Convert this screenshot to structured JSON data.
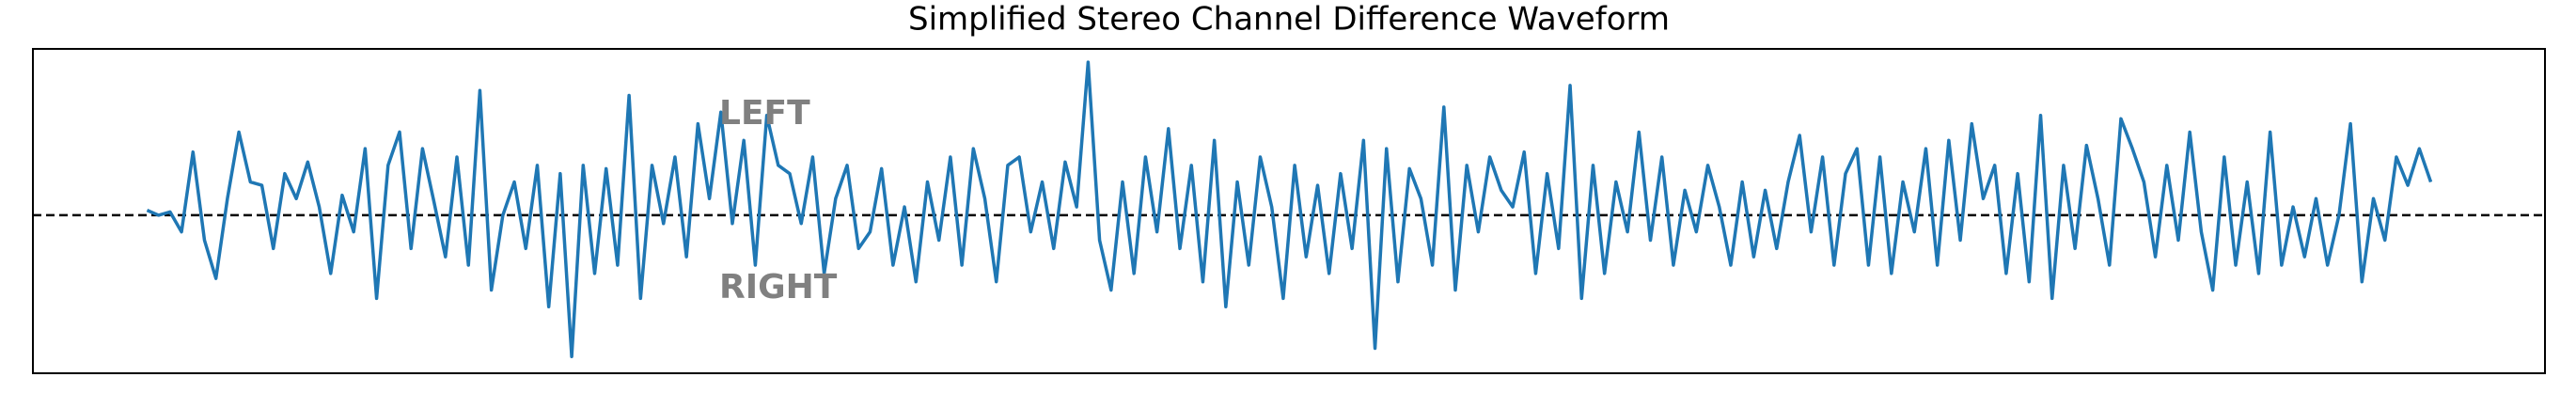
{
  "chart_data": {
    "type": "line",
    "title": "Simplified Stereo Channel Difference Waveform",
    "annotations": [
      "LEFT",
      "RIGHT"
    ],
    "reference_line": 0,
    "color": "#1f77b4",
    "xlim": [
      -9.95,
      208.95
    ],
    "ylim": [
      -0.95,
      1.0
    ],
    "values": [
      0.03,
      0.0,
      0.02,
      -0.1,
      0.38,
      -0.15,
      -0.38,
      0.1,
      0.5,
      0.2,
      0.18,
      -0.2,
      0.25,
      0.1,
      0.32,
      0.05,
      -0.35,
      0.12,
      -0.1,
      0.4,
      -0.5,
      0.3,
      0.5,
      -0.2,
      0.4,
      0.08,
      -0.25,
      0.35,
      -0.3,
      0.75,
      -0.45,
      0.0,
      0.2,
      -0.2,
      0.3,
      -0.55,
      0.25,
      -0.85,
      0.3,
      -0.35,
      0.28,
      -0.3,
      0.72,
      -0.5,
      0.3,
      -0.05,
      0.35,
      -0.25,
      0.55,
      0.1,
      0.62,
      -0.05,
      0.45,
      -0.3,
      0.6,
      0.3,
      0.25,
      -0.05,
      0.35,
      -0.35,
      0.1,
      0.3,
      -0.2,
      -0.1,
      0.28,
      -0.3,
      0.05,
      -0.4,
      0.2,
      -0.15,
      0.35,
      -0.3,
      0.4,
      0.1,
      -0.4,
      0.3,
      0.35,
      -0.1,
      0.2,
      -0.2,
      0.32,
      0.05,
      0.92,
      -0.15,
      -0.45,
      0.2,
      -0.35,
      0.35,
      -0.1,
      0.52,
      -0.2,
      0.3,
      -0.4,
      0.45,
      -0.55,
      0.2,
      -0.3,
      0.35,
      0.05,
      -0.5,
      0.3,
      -0.25,
      0.18,
      -0.35,
      0.25,
      -0.2,
      0.45,
      -0.8,
      0.4,
      -0.4,
      0.28,
      0.1,
      -0.3,
      0.65,
      -0.45,
      0.3,
      -0.1,
      0.35,
      0.15,
      0.05,
      0.38,
      -0.35,
      0.25,
      -0.2,
      0.78,
      -0.5,
      0.3,
      -0.35,
      0.2,
      -0.1,
      0.5,
      -0.15,
      0.35,
      -0.3,
      0.15,
      -0.1,
      0.3,
      0.05,
      -0.3,
      0.2,
      -0.25,
      0.15,
      -0.2,
      0.2,
      0.48,
      -0.1,
      0.35,
      -0.3,
      0.25,
      0.4,
      -0.3,
      0.35,
      -0.35,
      0.2,
      -0.1,
      0.4,
      -0.3,
      0.45,
      -0.15,
      0.55,
      0.1,
      0.3,
      -0.35,
      0.25,
      -0.4,
      0.6,
      -0.5,
      0.3,
      -0.2,
      0.42,
      0.1,
      -0.3,
      0.58,
      0.4,
      0.2,
      -0.25,
      0.3,
      -0.15,
      0.5,
      -0.1,
      -0.45,
      0.35,
      -0.3,
      0.2,
      -0.35,
      0.5,
      -0.3,
      0.05,
      -0.25,
      0.1,
      -0.3,
      0.0,
      0.55,
      -0.4,
      0.1,
      -0.15,
      0.35,
      0.18,
      0.4,
      0.2
    ]
  }
}
